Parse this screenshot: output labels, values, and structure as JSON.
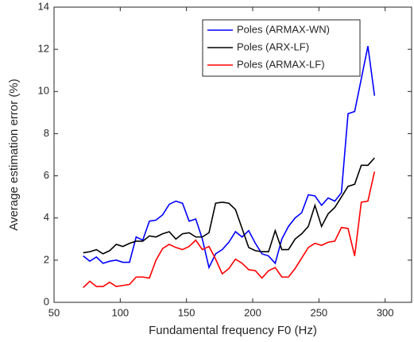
{
  "chart_data": {
    "type": "line",
    "x_label": "Fundamental frequency F0 (Hz)",
    "y_label": "Average estimation error (%)",
    "x": [
      72,
      77,
      82,
      87,
      92,
      97,
      102,
      107,
      112,
      117,
      122,
      127,
      132,
      137,
      142,
      147,
      152,
      157,
      162,
      167,
      172,
      177,
      182,
      187,
      192,
      197,
      202,
      207,
      212,
      217,
      222,
      227,
      232,
      237,
      242,
      247,
      252,
      257,
      262,
      267,
      272,
      277,
      282,
      287,
      292
    ],
    "series": [
      {
        "name": "Poles (ARMAX-WN)",
        "color": "#0000ff",
        "values": [
          2.2,
          1.95,
          2.15,
          1.85,
          1.95,
          2.0,
          1.9,
          1.9,
          3.1,
          2.95,
          3.85,
          3.9,
          4.15,
          4.65,
          4.8,
          4.7,
          3.85,
          3.95,
          3.0,
          1.65,
          2.3,
          2.5,
          2.85,
          3.35,
          3.1,
          3.4,
          2.8,
          2.3,
          2.2,
          1.85,
          3.0,
          3.6,
          4.0,
          4.25,
          5.1,
          5.05,
          4.6,
          4.95,
          4.8,
          5.2,
          8.95,
          9.05,
          10.6,
          12.15,
          9.8
        ]
      },
      {
        "name": "Poles (ARX-LF)",
        "color": "#000000",
        "values": [
          2.35,
          2.4,
          2.5,
          2.3,
          2.45,
          2.75,
          2.65,
          2.8,
          2.9,
          2.9,
          3.15,
          3.1,
          3.25,
          3.35,
          3.0,
          3.25,
          3.3,
          3.1,
          3.1,
          3.3,
          4.7,
          4.75,
          4.7,
          4.4,
          3.5,
          2.6,
          2.45,
          2.4,
          2.4,
          3.4,
          2.5,
          2.5,
          3.0,
          3.25,
          3.6,
          4.6,
          3.6,
          4.2,
          4.5,
          5.0,
          5.5,
          5.6,
          6.5,
          6.5,
          6.85
        ]
      },
      {
        "name": "Poles (ARMAX-LF)",
        "color": "#ff0000",
        "values": [
          0.7,
          1.0,
          0.75,
          0.75,
          0.95,
          0.75,
          0.8,
          0.85,
          1.2,
          1.2,
          1.15,
          2.0,
          2.55,
          2.75,
          2.6,
          2.5,
          2.65,
          2.95,
          2.5,
          2.65,
          2.05,
          1.35,
          1.6,
          2.05,
          1.85,
          1.55,
          1.5,
          1.15,
          1.5,
          1.65,
          1.2,
          1.2,
          1.6,
          2.1,
          2.6,
          2.8,
          2.7,
          2.85,
          2.9,
          3.55,
          3.5,
          2.2,
          4.75,
          4.8,
          6.2
        ]
      }
    ],
    "xlim": [
      50,
      320
    ],
    "xticks": [
      50,
      100,
      150,
      200,
      250,
      300
    ],
    "ylim": [
      0,
      14
    ],
    "yticks": [
      0,
      2,
      4,
      6,
      8,
      10,
      12,
      14
    ],
    "legend": "upper right"
  }
}
